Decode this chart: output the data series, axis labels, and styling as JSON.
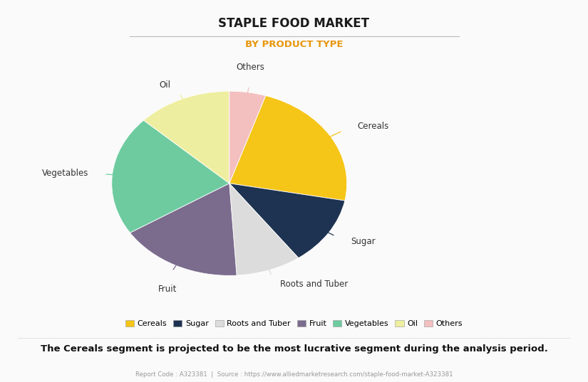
{
  "title": "STAPLE FOOD MARKET",
  "subtitle": "BY PRODUCT TYPE",
  "subtitle_color": "#E8960C",
  "labels": [
    "Cereals",
    "Sugar",
    "Roots and Tuber",
    "Fruit",
    "Vegetables",
    "Oil",
    "Others"
  ],
  "values": [
    23,
    12,
    9,
    17,
    21,
    13,
    5
  ],
  "colors": [
    "#F5C518",
    "#1E3351",
    "#DCDCDC",
    "#7B6B8D",
    "#6ECBA0",
    "#EEEEA0",
    "#F4BFBF"
  ],
  "start_angle": 72,
  "background_color": "#FAFAFA",
  "annotation": "The Cereals segment is projected to be the most lucrative segment during the analysis period.",
  "footer": "Report Code : A323381  |  Source : https://www.alliedmarketresearch.com/staple-food-market-A323381"
}
